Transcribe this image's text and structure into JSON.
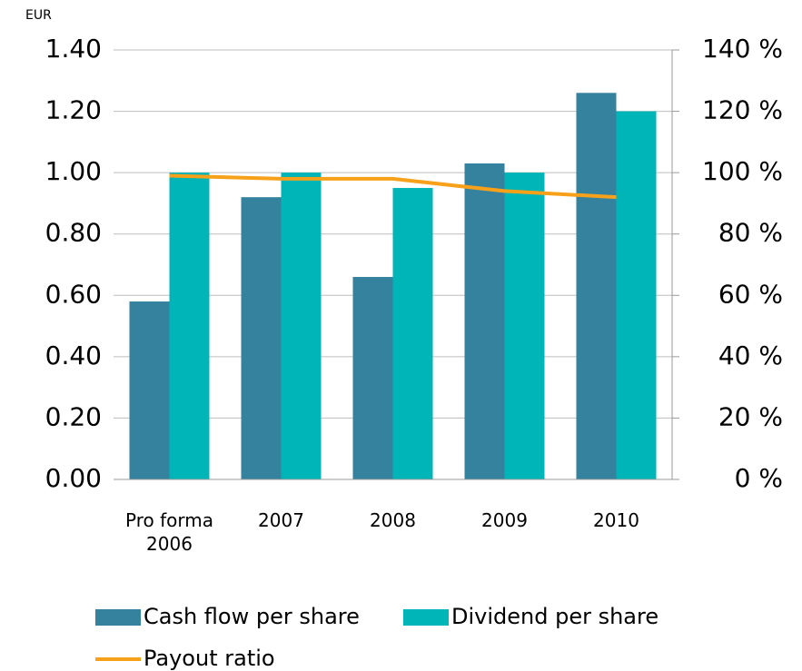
{
  "chart_data": {
    "type": "bar",
    "y_unit": "EUR",
    "categories": [
      "Pro forma 2006",
      "2007",
      "2008",
      "2009",
      "2010"
    ],
    "series": [
      {
        "name": "Cash flow per share",
        "color": "#35829f",
        "values": [
          0.58,
          0.92,
          0.66,
          1.03,
          1.26
        ]
      },
      {
        "name": "Dividend per share",
        "color": "#00b5b8",
        "values": [
          1.0,
          1.0,
          0.95,
          1.0,
          1.2
        ]
      },
      {
        "name": "Payout ratio",
        "type": "line",
        "axis": "y2",
        "color": "#f7a11a",
        "values": [
          99,
          98,
          98,
          94,
          92
        ]
      }
    ],
    "ylim": [
      0,
      1.4
    ],
    "yticks": [
      {
        "value": 0,
        "label": "0.00"
      },
      {
        "value": 0.2,
        "label": "0.20"
      },
      {
        "value": 0.4,
        "label": "0.40"
      },
      {
        "value": 0.6,
        "label": "0.60"
      },
      {
        "value": 0.8,
        "label": "0.80"
      },
      {
        "value": 1.0,
        "label": "1.00"
      },
      {
        "value": 1.2,
        "label": "1.20"
      },
      {
        "value": 1.4,
        "label": "1.40"
      }
    ],
    "y2lim": [
      0,
      140
    ],
    "y2ticks": [
      {
        "value": 0,
        "label": "0 %"
      },
      {
        "value": 20,
        "label": "20 %"
      },
      {
        "value": 40,
        "label": "40 %"
      },
      {
        "value": 60,
        "label": "60 %"
      },
      {
        "value": 80,
        "label": "80 %"
      },
      {
        "value": 100,
        "label": "100 %"
      },
      {
        "value": 120,
        "label": "120 %"
      },
      {
        "value": 140,
        "label": "140 %"
      }
    ],
    "grid": true
  }
}
